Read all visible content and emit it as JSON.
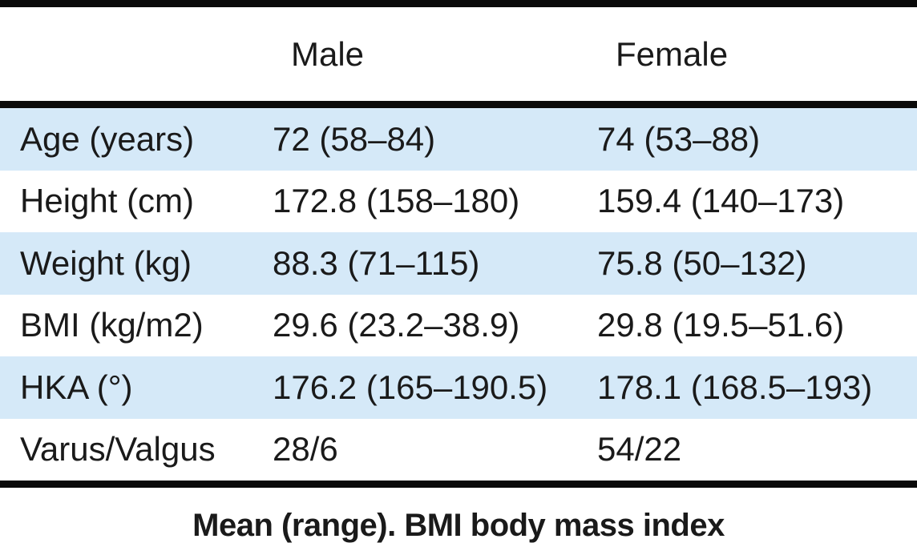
{
  "table": {
    "columns": {
      "male_label": "Male",
      "female_label": "Female"
    },
    "rows": [
      {
        "label": "Age (years)",
        "male": "72 (58–84)",
        "female": "74 (53–88)"
      },
      {
        "label": "Height (cm)",
        "male": "172.8 (158–180)",
        "female": "159.4 (140–173)"
      },
      {
        "label": "Weight (kg)",
        "male": "88.3 (71–115)",
        "female": "75.8 (50–132)"
      },
      {
        "label": "BMI (kg/m2)",
        "male": "29.6 (23.2–38.9)",
        "female": "29.8 (19.5–51.6)"
      },
      {
        "label": "HKA (°)",
        "male": "176.2 (165–190.5)",
        "female": "178.1 (168.5–193)"
      },
      {
        "label": "Varus/Valgus",
        "male": "28/6",
        "female": "54/22"
      }
    ],
    "footnote": "Mean (range). BMI body mass index"
  },
  "colors": {
    "row_highlight": "#d5e9f8",
    "rule": "#0a0a0a",
    "text": "#1a1a1a"
  }
}
